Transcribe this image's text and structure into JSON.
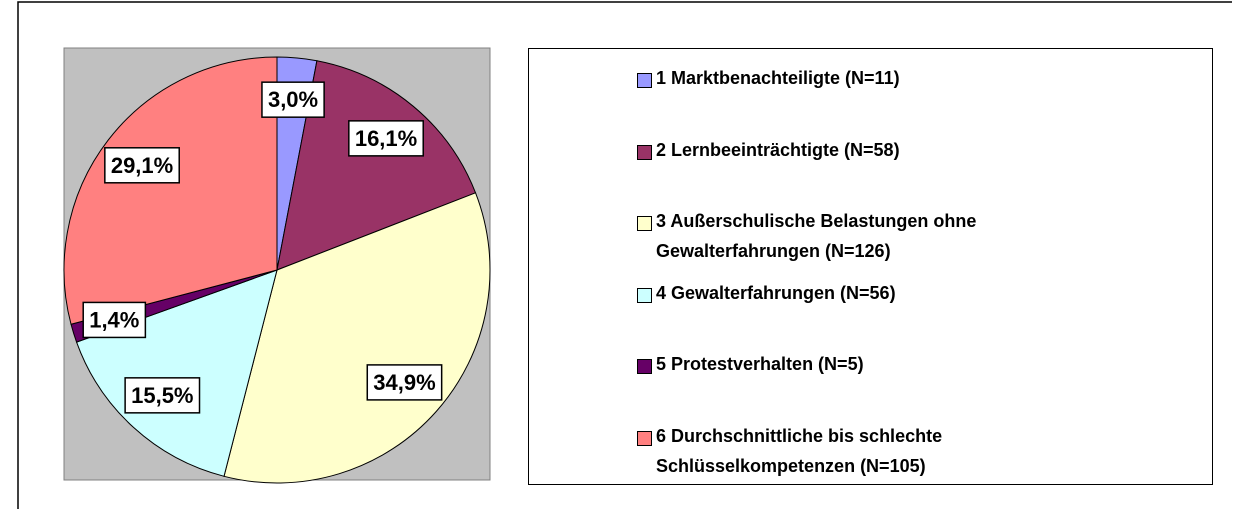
{
  "chart_data": {
    "type": "pie",
    "categories": [
      "1 Marktbenachteiligte (N=11)",
      "2 Lernbeeinträchtigte (N=58)",
      "3 Außerschulische Belastungen ohne Gewalterfahrungen (N=126)",
      "4 Gewalterfahrungen (N=56)",
      "5 Protestverhalten (N=5)",
      "6 Durchschnittliche bis schlechte Schlüsselkompetenzen (N=105)"
    ],
    "values": [
      3.0,
      16.1,
      34.9,
      15.5,
      1.4,
      29.1
    ],
    "value_labels": [
      "3,0%",
      "16,1%",
      "34,9%",
      "15,5%",
      "1,4%",
      "29,1%"
    ],
    "colors": [
      "#9999ff",
      "#993366",
      "#ffffcc",
      "#ccffff",
      "#660066",
      "#ff8080"
    ],
    "legend": "right"
  }
}
